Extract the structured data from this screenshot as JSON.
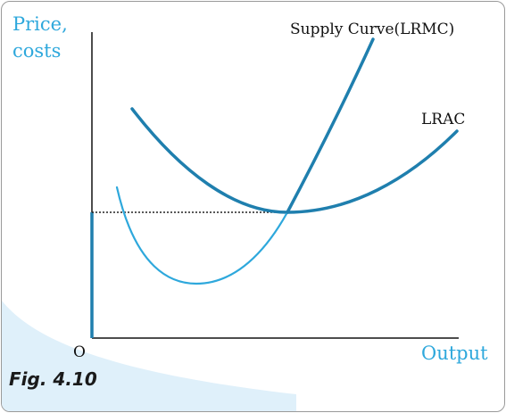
{
  "figure": {
    "caption": "Fig. 4.10",
    "y_axis_label_line1": "Price,",
    "y_axis_label_line2": "costs",
    "x_axis_label": "Output",
    "origin_label": "O",
    "supply_curve_label": "Supply Curve(LRMC)",
    "lrac_label": "LRAC"
  },
  "colors": {
    "axis": "#4d4d4d",
    "curve_dark": "#1f7fae",
    "curve_light": "#2ea8dc",
    "label_blue": "#2ea8dc",
    "decor_wave": "#dff0fa"
  }
}
